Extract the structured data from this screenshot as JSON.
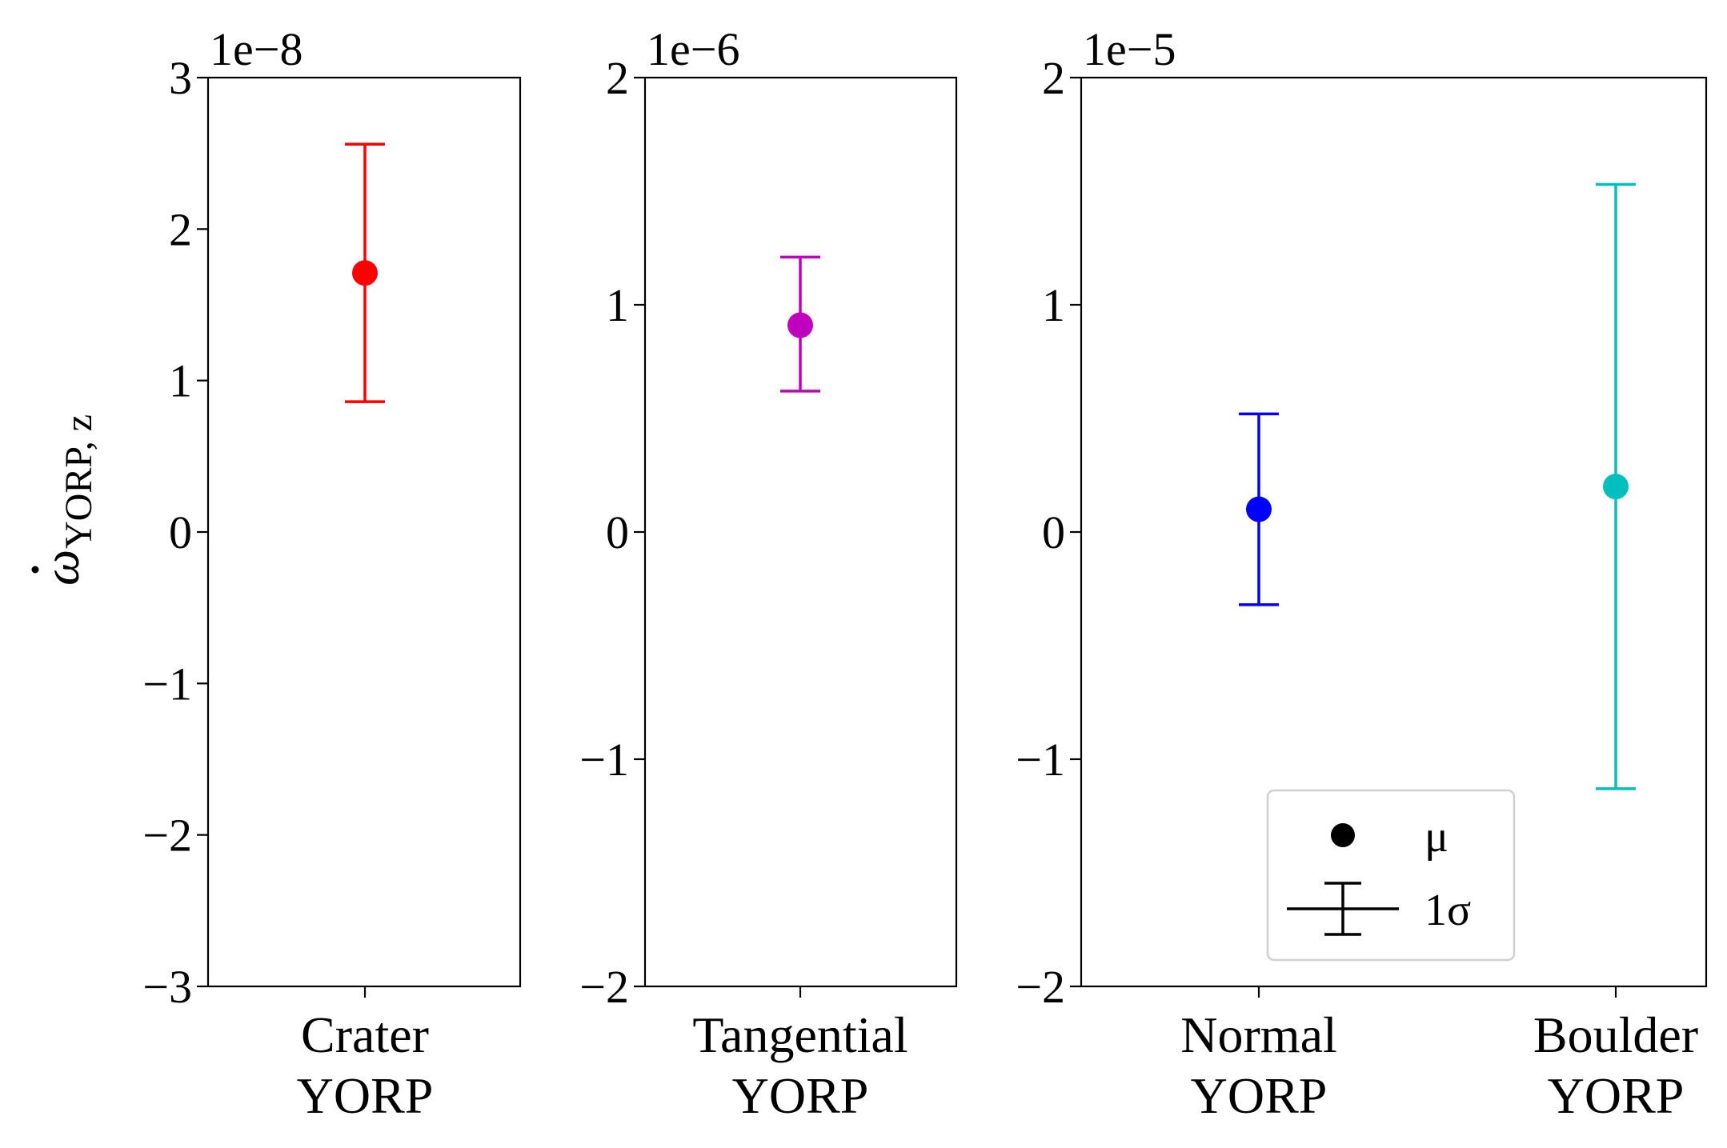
{
  "ylabel": {
    "base": "ω",
    "sub": "YORP, z"
  },
  "chart_data": [
    {
      "type": "scatter",
      "title": "",
      "xlabel": "",
      "ylabel": "ω̇_YORP,z",
      "offset_label": "1e−8",
      "ylim": [
        -3,
        3
      ],
      "yticks": [
        -3,
        -2,
        -1,
        0,
        1,
        2,
        3
      ],
      "ytick_labels": [
        "−3",
        "−2",
        "−1",
        "0",
        "1",
        "2",
        "3"
      ],
      "grid": false,
      "series": [
        {
          "category": [
            "Crater",
            "YORP"
          ],
          "mean": 1.71,
          "lower": 0.86,
          "upper": 2.56,
          "color": "#ff0000"
        }
      ]
    },
    {
      "type": "scatter",
      "title": "",
      "xlabel": "",
      "offset_label": "1e−6",
      "ylim": [
        -2,
        2
      ],
      "yticks": [
        -2,
        -1,
        0,
        1,
        2
      ],
      "ytick_labels": [
        "−2",
        "−1",
        "0",
        "1",
        "2"
      ],
      "grid": false,
      "series": [
        {
          "category": [
            "Tangential",
            "YORP"
          ],
          "mean": 0.91,
          "lower": 0.62,
          "upper": 1.21,
          "color": "#bf00bf"
        }
      ]
    },
    {
      "type": "scatter",
      "title": "",
      "xlabel": "",
      "offset_label": "1e−5",
      "ylim": [
        -2,
        2
      ],
      "yticks": [
        -2,
        -1,
        0,
        1,
        2
      ],
      "ytick_labels": [
        "−2",
        "−1",
        "0",
        "1",
        "2"
      ],
      "grid": false,
      "legend": {
        "placement": "lower-center",
        "entries": [
          {
            "marker": "point",
            "label": "μ"
          },
          {
            "marker": "errorbar",
            "label": "1σ"
          }
        ]
      },
      "series": [
        {
          "category": [
            "Normal",
            "YORP"
          ],
          "mean": 0.1,
          "lower": -0.32,
          "upper": 0.52,
          "color": "#0000ff"
        },
        {
          "category": [
            "Boulder",
            "YORP"
          ],
          "mean": 0.2,
          "lower": -1.13,
          "upper": 1.53,
          "color": "#00bfbf"
        }
      ]
    }
  ]
}
